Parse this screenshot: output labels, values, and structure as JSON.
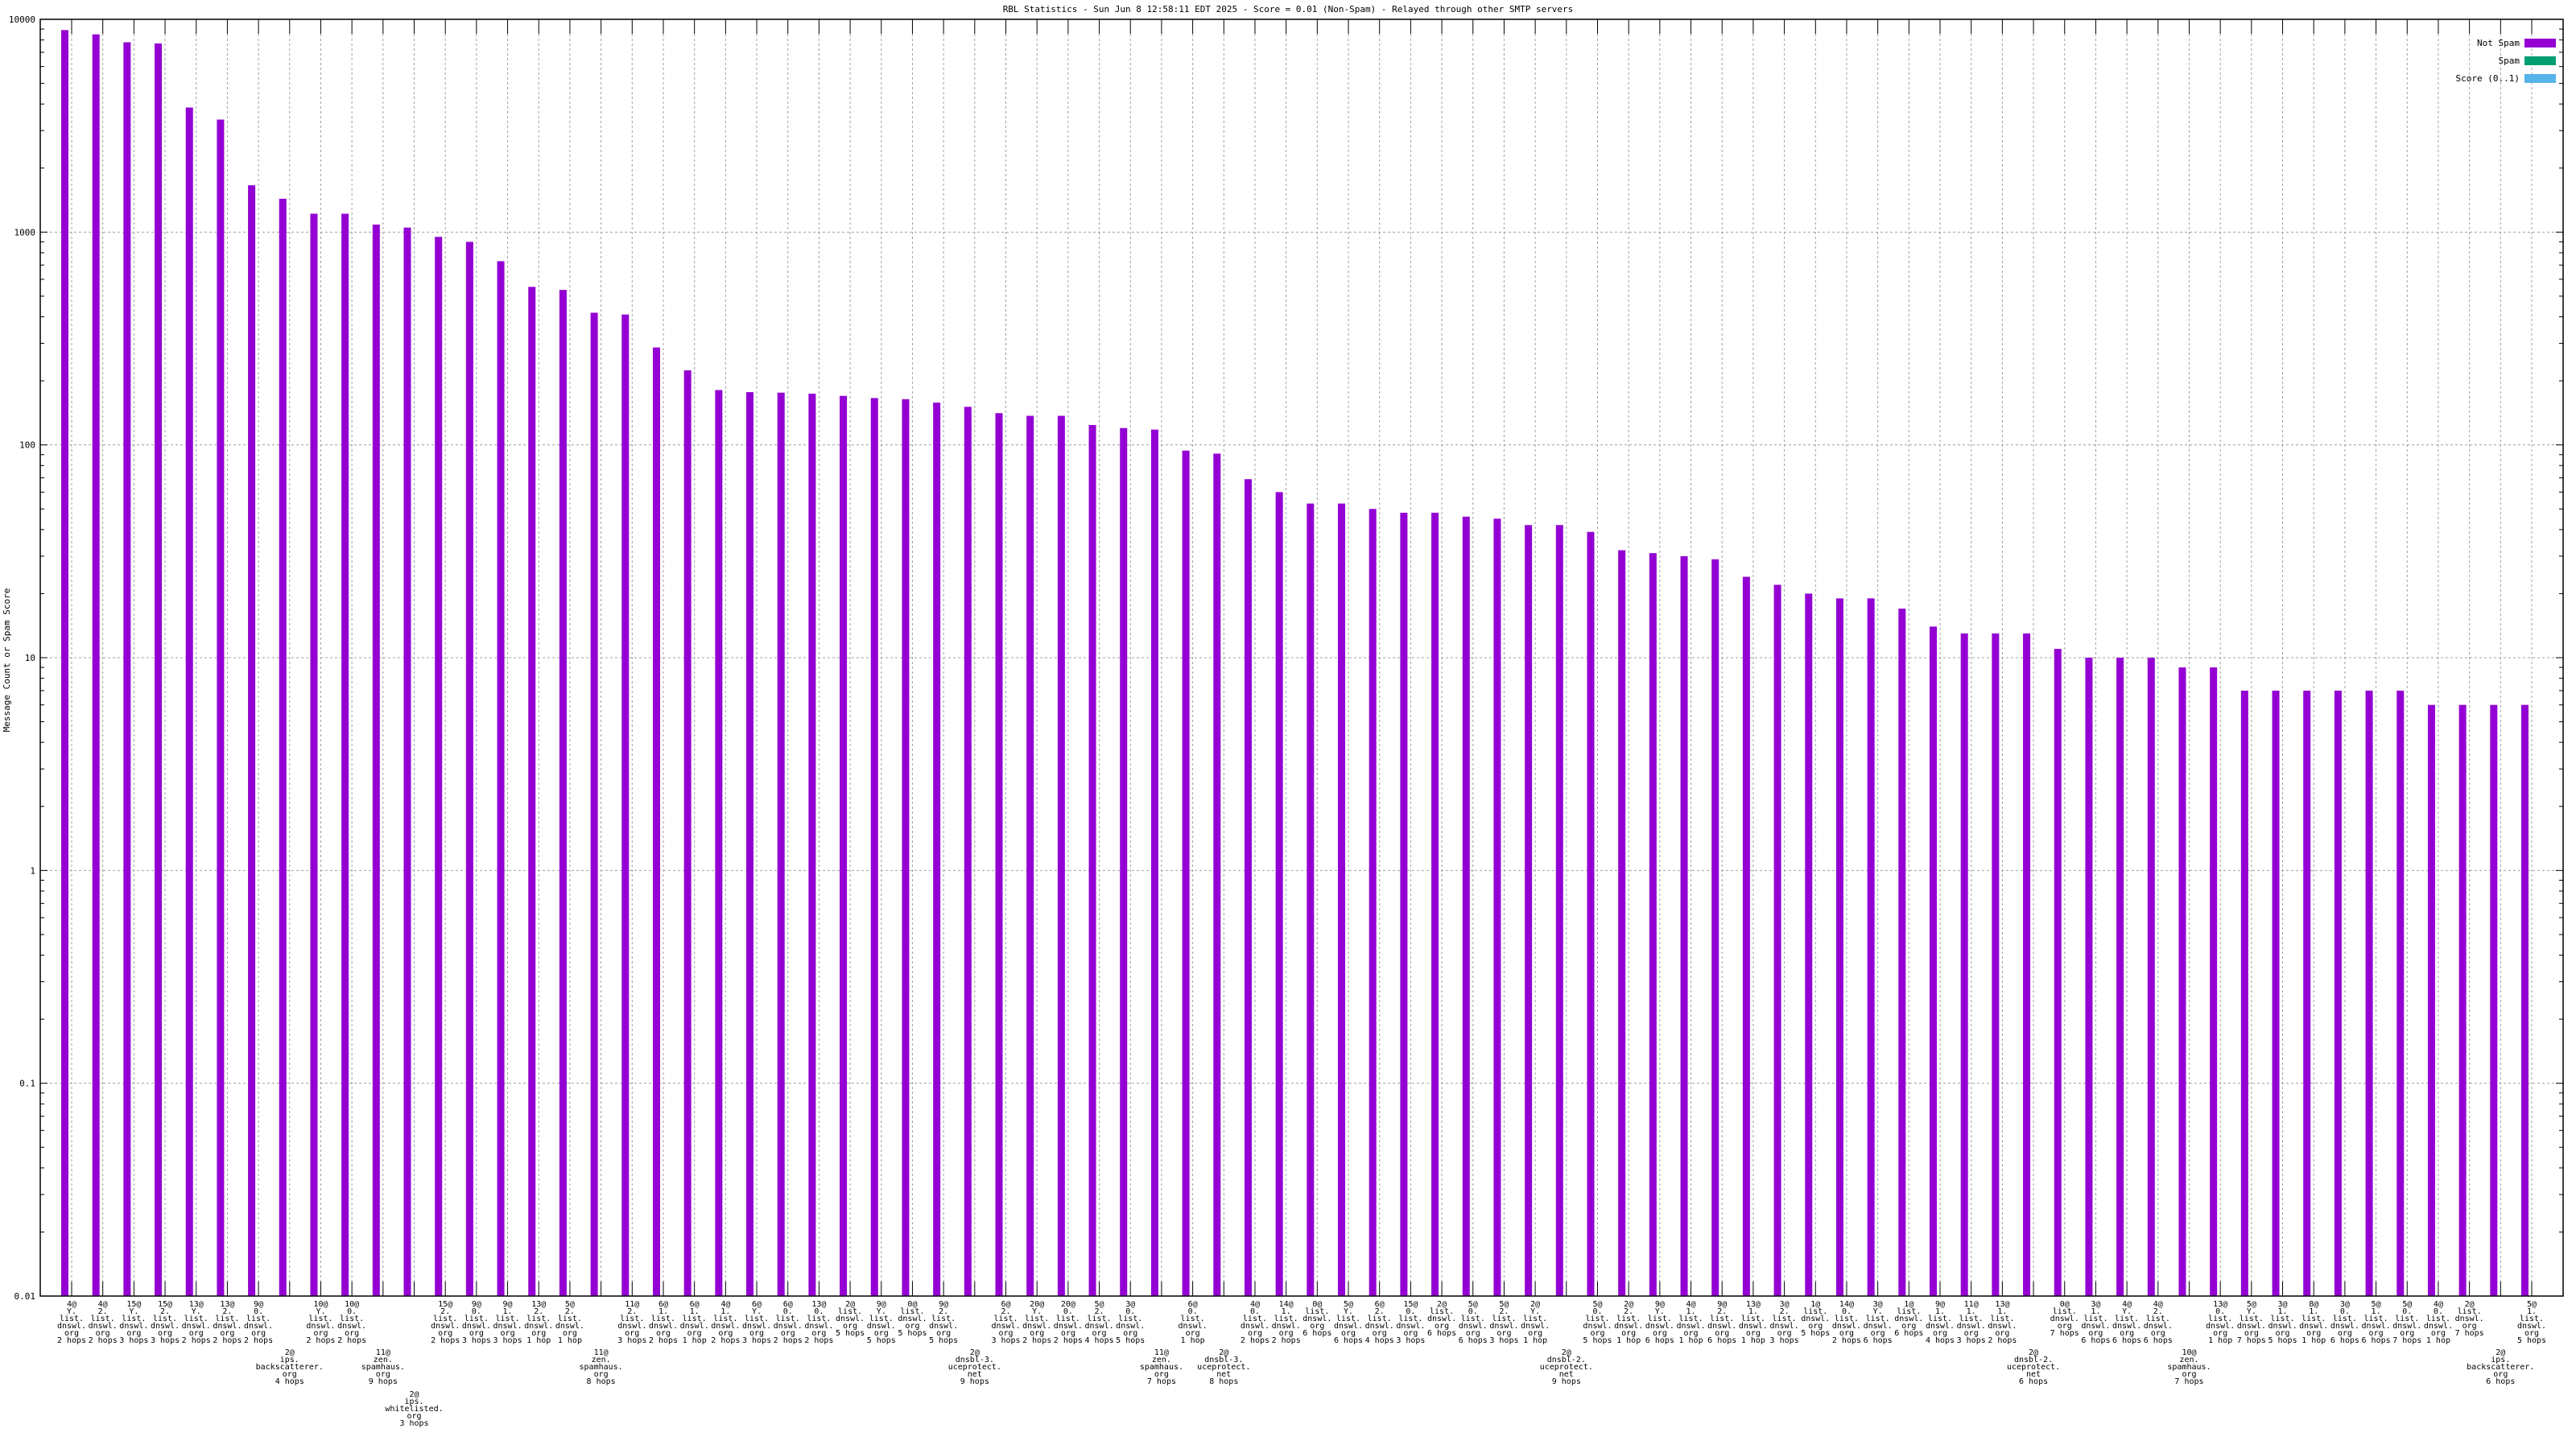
{
  "chart_data": {
    "type": "bar",
    "title": "RBL Statistics - Sun Jun  8 12:58:11 EDT 2025 - Score = 0.01 (Non-Spam) - Relayed through other SMTP servers",
    "ylabel": "Message Count or Spam Score",
    "xlabel": "",
    "yscale": "log",
    "ylim": [
      0.01,
      10000
    ],
    "yticks": [
      "10000",
      "1000",
      "100",
      "10",
      "1",
      "0.1",
      "0.01"
    ],
    "grid": true,
    "legend_placement": "top-right",
    "legend": [
      {
        "name": "Not Spam",
        "color": "#9400d3"
      },
      {
        "name": "Spam",
        "color": "#009e73"
      },
      {
        "name": "Score (0..1)",
        "color": "#56b4e9"
      }
    ],
    "categories": [
      [
        "4@",
        "Y.",
        "list.",
        "dnswl.",
        "org",
        "2 hops"
      ],
      [
        "4@",
        "2.",
        "list.",
        "dnswl.",
        "org",
        "2 hops"
      ],
      [
        "15@",
        "Y.",
        "list.",
        "dnswl.",
        "org",
        "3 hops"
      ],
      [
        "15@",
        "2.",
        "list.",
        "dnswl.",
        "org",
        "3 hops"
      ],
      [
        "13@",
        "Y.",
        "list.",
        "dnswl.",
        "org",
        "2 hops"
      ],
      [
        "13@",
        "2.",
        "list.",
        "dnswl.",
        "org",
        "2 hops"
      ],
      [
        "9@",
        "0.",
        "list.",
        "dnswl.",
        "org",
        "2 hops"
      ],
      [
        "2@",
        "ips.",
        "backscatterer.",
        "org",
        "4 hops"
      ],
      [
        "10@",
        "Y.",
        "list.",
        "dnswl.",
        "org",
        "2 hops"
      ],
      [
        "10@",
        "0.",
        "list.",
        "dnswl.",
        "org",
        "2 hops"
      ],
      [
        "11@",
        "zen.",
        "spamhaus.",
        "org",
        "9 hops"
      ],
      [
        "2@",
        "ips.",
        "whitelisted.",
        "org",
        "3 hops"
      ],
      [
        "15@",
        "2.",
        "list.",
        "dnswl.",
        "org",
        "2 hops"
      ],
      [
        "9@",
        "0.",
        "list.",
        "dnswl.",
        "org",
        "3 hops"
      ],
      [
        "9@",
        "1.",
        "list.",
        "dnswl.",
        "org",
        "3 hops"
      ],
      [
        "13@",
        "2.",
        "list.",
        "dnswl.",
        "org",
        "1 hop"
      ],
      [
        "5@",
        "2.",
        "list.",
        "dnswl.",
        "org",
        "1 hop"
      ],
      [
        "11@",
        "zen.",
        "spamhaus.",
        "org",
        "8 hops"
      ],
      [
        "11@",
        "2.",
        "list.",
        "dnswl.",
        "org",
        "3 hops"
      ],
      [
        "6@",
        "1.",
        "list.",
        "dnswl.",
        "org",
        "2 hops"
      ],
      [
        "6@",
        "1.",
        "list.",
        "dnswl.",
        "org",
        "1 hop"
      ],
      [
        "4@",
        "1.",
        "list.",
        "dnswl.",
        "org",
        "2 hops"
      ],
      [
        "6@",
        "Y.",
        "list.",
        "dnswl.",
        "org",
        "3 hops"
      ],
      [
        "6@",
        "0.",
        "list.",
        "dnswl.",
        "org",
        "2 hops"
      ],
      [
        "13@",
        "0.",
        "list.",
        "dnswl.",
        "org",
        "2 hops"
      ],
      [
        "2@",
        "list.",
        "dnswl.",
        "org",
        "5 hops"
      ],
      [
        "9@",
        "Y.",
        "list.",
        "dnswl.",
        "org",
        "5 hops"
      ],
      [
        "0@",
        "list.",
        "dnswl.",
        "org",
        "5 hops"
      ],
      [
        "9@",
        "2.",
        "list.",
        "dnswl.",
        "org",
        "5 hops"
      ],
      [
        "2@",
        "dnsbl-3.",
        "uceprotect.",
        "net",
        "9 hops"
      ],
      [
        "6@",
        "2.",
        "list.",
        "dnswl.",
        "org",
        "3 hops"
      ],
      [
        "20@",
        "Y.",
        "list.",
        "dnswl.",
        "org",
        "2 hops"
      ],
      [
        "20@",
        "0.",
        "list.",
        "dnswl.",
        "org",
        "2 hops"
      ],
      [
        "5@",
        "2.",
        "list.",
        "dnswl.",
        "org",
        "4 hops"
      ],
      [
        "3@",
        "0.",
        "list.",
        "dnswl.",
        "org",
        "5 hops"
      ],
      [
        "11@",
        "zen.",
        "spamhaus.",
        "org",
        "7 hops"
      ],
      [
        "6@",
        "0.",
        "list.",
        "dnswl.",
        "org",
        "1 hop"
      ],
      [
        "2@",
        "dnsbl-3.",
        "uceprotect.",
        "net",
        "8 hops"
      ],
      [
        "4@",
        "0.",
        "list.",
        "dnswl.",
        "org",
        "2 hops"
      ],
      [
        "14@",
        "1.",
        "list.",
        "dnswl.",
        "org",
        "2 hops"
      ],
      [
        "0@",
        "list.",
        "dnswl.",
        "org",
        "6 hops"
      ],
      [
        "5@",
        "Y.",
        "list.",
        "dnswl.",
        "org",
        "6 hops"
      ],
      [
        "6@",
        "2.",
        "list.",
        "dnswl.",
        "org",
        "4 hops"
      ],
      [
        "15@",
        "0.",
        "list.",
        "dnswl.",
        "org",
        "3 hops"
      ],
      [
        "2@",
        "list.",
        "dnswl.",
        "org",
        "6 hops"
      ],
      [
        "5@",
        "0.",
        "list.",
        "dnswl.",
        "org",
        "6 hops"
      ],
      [
        "5@",
        "2.",
        "list.",
        "dnswl.",
        "org",
        "3 hops"
      ],
      [
        "2@",
        "Y.",
        "list.",
        "dnswl.",
        "org",
        "1 hop"
      ],
      [
        "2@",
        "dnsbl-2.",
        "uceprotect.",
        "net",
        "9 hops"
      ],
      [
        "5@",
        "0.",
        "list.",
        "dnswl.",
        "org",
        "5 hops"
      ],
      [
        "2@",
        "2.",
        "list.",
        "dnswl.",
        "org",
        "1 hop"
      ],
      [
        "9@",
        "Y.",
        "list.",
        "dnswl.",
        "org",
        "6 hops"
      ],
      [
        "4@",
        "1.",
        "list.",
        "dnswl.",
        "org",
        "1 hop"
      ],
      [
        "9@",
        "2.",
        "list.",
        "dnswl.",
        "org",
        "6 hops"
      ],
      [
        "13@",
        "1.",
        "list.",
        "dnswl.",
        "org",
        "1 hop"
      ],
      [
        "3@",
        "2.",
        "list.",
        "dnswl.",
        "org",
        "3 hops"
      ],
      [
        "1@",
        "list.",
        "dnswl.",
        "org",
        "5 hops"
      ],
      [
        "14@",
        "0.",
        "list.",
        "dnswl.",
        "org",
        "2 hops"
      ],
      [
        "3@",
        "Y.",
        "list.",
        "dnswl.",
        "org",
        "6 hops"
      ],
      [
        "1@",
        "list.",
        "dnswl.",
        "org",
        "6 hops"
      ],
      [
        "9@",
        "1.",
        "list.",
        "dnswl.",
        "org",
        "4 hops"
      ],
      [
        "11@",
        "1.",
        "list.",
        "dnswl.",
        "org",
        "3 hops"
      ],
      [
        "13@",
        "1.",
        "list.",
        "dnswl.",
        "org",
        "2 hops"
      ],
      [
        "2@",
        "dnsbl-2.",
        "uceprotect.",
        "net",
        "6 hops"
      ],
      [
        "0@",
        "list.",
        "dnswl.",
        "org",
        "7 hops"
      ],
      [
        "3@",
        "1.",
        "list.",
        "dnswl.",
        "org",
        "6 hops"
      ],
      [
        "4@",
        "Y.",
        "list.",
        "dnswl.",
        "org",
        "6 hops"
      ],
      [
        "4@",
        "2.",
        "list.",
        "dnswl.",
        "org",
        "6 hops"
      ],
      [
        "10@",
        "zen.",
        "spamhaus.",
        "org",
        "7 hops"
      ],
      [
        "13@",
        "0.",
        "list.",
        "dnswl.",
        "org",
        "1 hop"
      ],
      [
        "5@",
        "Y.",
        "list.",
        "dnswl.",
        "org",
        "7 hops"
      ],
      [
        "3@",
        "1.",
        "list.",
        "dnswl.",
        "org",
        "5 hops"
      ],
      [
        "8@",
        "1.",
        "list.",
        "dnswl.",
        "org",
        "1 hop"
      ],
      [
        "3@",
        "0.",
        "list.",
        "dnswl.",
        "org",
        "6 hops"
      ],
      [
        "5@",
        "1.",
        "list.",
        "dnswl.",
        "org",
        "6 hops"
      ],
      [
        "5@",
        "0.",
        "list.",
        "dnswl.",
        "org",
        "7 hops"
      ],
      [
        "4@",
        "0.",
        "list.",
        "dnswl.",
        "org",
        "1 hop"
      ],
      [
        "2@",
        "list.",
        "dnswl.",
        "org",
        "7 hops"
      ],
      [
        "2@",
        "ips.",
        "backscatterer.",
        "org",
        "6 hops"
      ],
      [
        "5@",
        "1.",
        "list.",
        "dnswl.",
        "org",
        "5 hops"
      ]
    ],
    "series": [
      {
        "name": "Not Spam",
        "values": [
          8900,
          8500,
          7800,
          7700,
          3850,
          3380,
          1660,
          1435,
          1220,
          1220,
          1085,
          1050,
          950,
          900,
          730,
          553,
          535,
          418,
          410,
          287,
          224,
          181,
          177,
          176,
          174,
          170,
          166,
          164,
          158,
          151,
          141,
          137,
          137,
          124,
          120,
          118,
          94,
          91,
          69,
          60,
          53,
          53,
          50,
          48,
          48,
          46,
          45,
          42,
          42,
          39,
          32,
          31,
          30,
          29,
          24,
          22,
          20,
          19,
          19,
          17,
          14,
          13,
          13,
          13,
          11,
          10,
          10,
          10,
          9,
          9,
          7,
          7,
          7,
          7,
          7,
          7,
          6,
          6,
          6,
          6
        ]
      }
    ]
  }
}
